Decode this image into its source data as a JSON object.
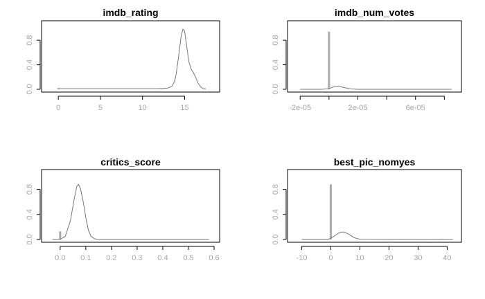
{
  "chart_data": [
    {
      "type": "line",
      "title": "imdb_rating",
      "xlim": [
        -1,
        18.5
      ],
      "ylim": [
        0,
        1.05
      ],
      "xticks": [
        0,
        5,
        10,
        15
      ],
      "xtick_labels": [
        "0",
        "5",
        "10",
        "15"
      ],
      "yticks": [
        0.0,
        0.4,
        0.8
      ],
      "ytick_labels": [
        "0.0",
        "0.4",
        "0.8"
      ],
      "intercept_line": {
        "x": 0,
        "height": 0.02
      },
      "series": [
        {
          "color": "#777777",
          "x": [
            0,
            12.0,
            13.0,
            13.5,
            13.8,
            14.0,
            14.3,
            14.6,
            14.8,
            15.0,
            15.2,
            15.5,
            15.8,
            16.0,
            16.3,
            16.6,
            16.9,
            17.2,
            17.5
          ],
          "y": [
            0.01,
            0.01,
            0.02,
            0.05,
            0.13,
            0.25,
            0.55,
            0.88,
            0.98,
            0.95,
            0.75,
            0.45,
            0.32,
            0.28,
            0.2,
            0.1,
            0.04,
            0.01,
            0.01
          ]
        }
      ]
    },
    {
      "type": "line",
      "title": "imdb_num_votes",
      "xlim": [
        -2.3e-05,
        8.8e-05
      ],
      "ylim": [
        0,
        1.05
      ],
      "xticks": [
        -2e-05,
        0.0,
        2e-05,
        4e-05,
        6e-05,
        8e-05
      ],
      "xtick_labels": [
        "-2e-05",
        "",
        "2e-05",
        "",
        "6e-05",
        ""
      ],
      "yticks": [
        0.0,
        0.4,
        0.8
      ],
      "ytick_labels": [
        "0.0",
        "0.4",
        "0.8"
      ],
      "intercept_line": {
        "x": 0.0,
        "height": 0.94
      },
      "series": [
        {
          "color": "#777777",
          "x": [
            -2e-05,
            -5e-06,
            0.0,
            2e-06,
            4e-06,
            6e-06,
            8e-06,
            1e-05,
            1.3e-05,
            1.6e-05,
            2e-05,
            4e-05,
            6e-05,
            8.5e-05
          ],
          "y": [
            0.0,
            0.0,
            0.01,
            0.03,
            0.045,
            0.05,
            0.045,
            0.03,
            0.015,
            0.005,
            0.0,
            0.0,
            0.0,
            0.0
          ]
        }
      ]
    },
    {
      "type": "line",
      "title": "critics_score",
      "xlim": [
        -0.04,
        0.6
      ],
      "ylim": [
        0,
        1.05
      ],
      "xticks": [
        0.0,
        0.1,
        0.2,
        0.3,
        0.4,
        0.5,
        0.6
      ],
      "xtick_labels": [
        "0.0",
        "0.1",
        "0.2",
        "0.3",
        "0.4",
        "0.5",
        "0.6"
      ],
      "yticks": [
        0.0,
        0.4,
        0.8
      ],
      "ytick_labels": [
        "0.0",
        "0.4",
        "0.8"
      ],
      "intercept_line": {
        "x": 0.0,
        "height": 0.13
      },
      "series": [
        {
          "color": "#777777",
          "x": [
            -0.03,
            0.0,
            0.02,
            0.04,
            0.055,
            0.065,
            0.072,
            0.08,
            0.09,
            0.1,
            0.11,
            0.12,
            0.135,
            0.15,
            0.3,
            0.58
          ],
          "y": [
            0.0,
            0.0,
            0.05,
            0.3,
            0.65,
            0.85,
            0.88,
            0.8,
            0.6,
            0.35,
            0.15,
            0.05,
            0.01,
            0.0,
            0.0,
            0.0
          ]
        }
      ]
    },
    {
      "type": "line",
      "title": "best_pic_nomyes",
      "xlim": [
        -12,
        43
      ],
      "ylim": [
        0,
        1.05
      ],
      "xticks": [
        -10,
        0,
        10,
        20,
        30,
        40
      ],
      "xtick_labels": [
        "-10",
        "0",
        "10",
        "20",
        "30",
        "40"
      ],
      "yticks": [
        0.0,
        0.4,
        0.8
      ],
      "ytick_labels": [
        "0.0",
        "0.4",
        "0.8"
      ],
      "intercept_line": {
        "x": 0,
        "height": 0.88
      },
      "series": [
        {
          "color": "#777777",
          "x": [
            -10,
            -1,
            0,
            1,
            2,
            3,
            4,
            5,
            6,
            7,
            8,
            9,
            10,
            42
          ],
          "y": [
            0.0,
            0.0,
            0.02,
            0.05,
            0.08,
            0.11,
            0.12,
            0.11,
            0.09,
            0.06,
            0.03,
            0.015,
            0.005,
            0.0
          ]
        }
      ]
    }
  ]
}
